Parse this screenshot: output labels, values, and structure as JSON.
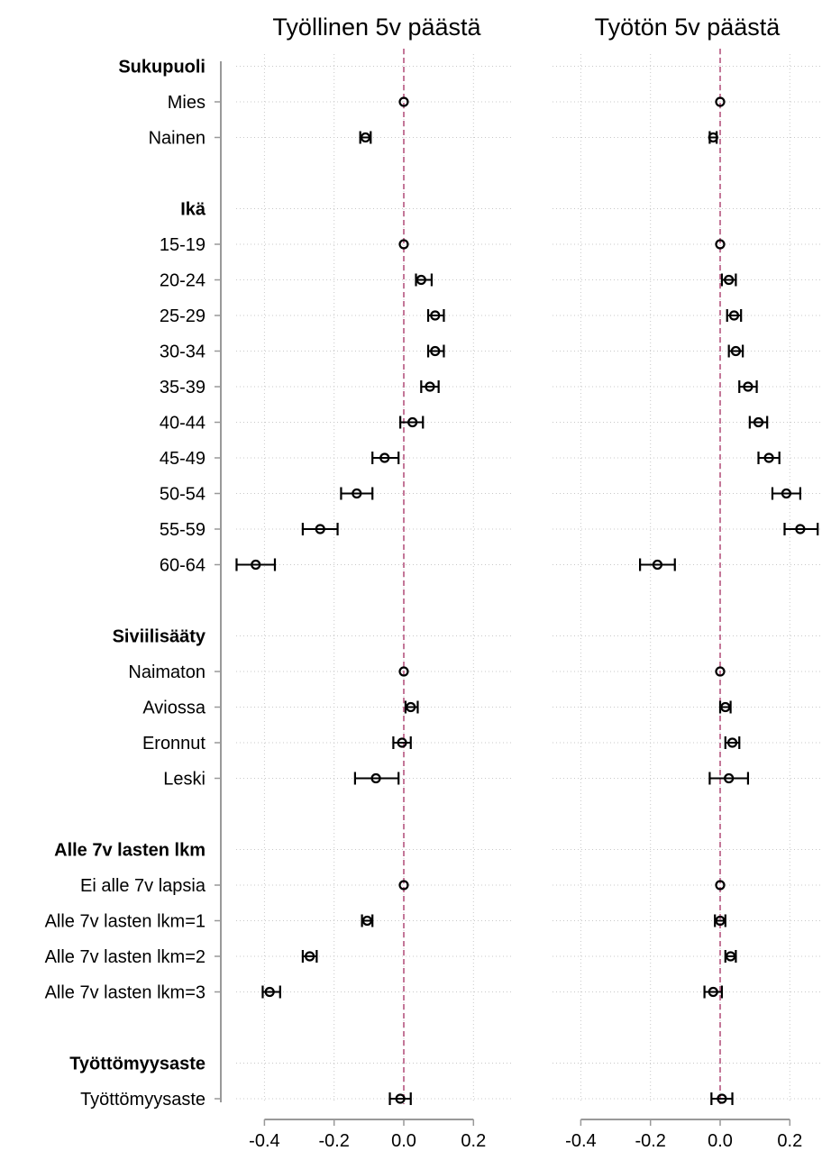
{
  "chart_data": {
    "type": "scatter",
    "categories": [
      {
        "label": "Sukupuoli",
        "header": true
      },
      {
        "label": "Mies"
      },
      {
        "label": "Nainen"
      },
      {
        "label": "",
        "spacer": true
      },
      {
        "label": "Ikä",
        "header": true
      },
      {
        "label": "15-19"
      },
      {
        "label": "20-24"
      },
      {
        "label": "25-29"
      },
      {
        "label": "30-34"
      },
      {
        "label": "35-39"
      },
      {
        "label": "40-44"
      },
      {
        "label": "45-49"
      },
      {
        "label": "50-54"
      },
      {
        "label": "55-59"
      },
      {
        "label": "60-64"
      },
      {
        "label": "",
        "spacer": true
      },
      {
        "label": "Siviilisääty",
        "header": true
      },
      {
        "label": "Naimaton"
      },
      {
        "label": "Aviossa"
      },
      {
        "label": "Eronnut"
      },
      {
        "label": "Leski"
      },
      {
        "label": "",
        "spacer": true
      },
      {
        "label": "Alle 7v lasten lkm",
        "header": true
      },
      {
        "label": "Ei alle 7v lapsia"
      },
      {
        "label": "Alle 7v lasten lkm=1"
      },
      {
        "label": "Alle 7v lasten lkm=2"
      },
      {
        "label": "Alle 7v lasten lkm=3"
      },
      {
        "label": "",
        "spacer": true
      },
      {
        "label": "Työttömyysaste",
        "header": true
      },
      {
        "label": "Työttömyysaste"
      }
    ],
    "xticks": [
      -0.4,
      -0.2,
      0.0,
      0.2
    ],
    "xtick_labels": [
      "-0.4",
      "-0.2",
      "0.0",
      "0.2"
    ],
    "xlim": [
      -0.53,
      0.3
    ],
    "reference_line": 0,
    "reference_color": "#b5557f",
    "grid": true,
    "panels": [
      {
        "title": "Työllinen 5v päästä",
        "estimates": [
          null,
          0.0,
          -0.11,
          null,
          null,
          0.0,
          0.05,
          0.09,
          0.09,
          0.075,
          0.025,
          -0.055,
          -0.135,
          -0.24,
          -0.425,
          null,
          null,
          0.0,
          0.02,
          -0.005,
          -0.08,
          null,
          null,
          0.0,
          -0.105,
          -0.27,
          -0.385,
          null,
          null,
          -0.01
        ],
        "ci_lower": [
          null,
          null,
          -0.125,
          null,
          null,
          null,
          0.035,
          0.07,
          0.07,
          0.05,
          -0.01,
          -0.09,
          -0.18,
          -0.29,
          -0.48,
          null,
          null,
          null,
          0.005,
          -0.03,
          -0.14,
          null,
          null,
          null,
          -0.12,
          -0.29,
          -0.405,
          null,
          null,
          -0.04
        ],
        "ci_upper": [
          null,
          null,
          -0.095,
          null,
          null,
          null,
          0.08,
          0.115,
          0.115,
          0.1,
          0.055,
          -0.015,
          -0.09,
          -0.19,
          -0.37,
          null,
          null,
          null,
          0.04,
          0.02,
          -0.015,
          null,
          null,
          null,
          -0.09,
          -0.25,
          -0.355,
          null,
          null,
          0.02
        ]
      },
      {
        "title": "Työtön 5v päästä",
        "estimates": [
          null,
          0.0,
          -0.02,
          null,
          null,
          0.0,
          0.025,
          0.04,
          0.045,
          0.08,
          0.11,
          0.14,
          0.19,
          0.23,
          -0.18,
          null,
          null,
          0.0,
          0.015,
          0.035,
          0.025,
          null,
          null,
          0.0,
          0.0,
          0.03,
          -0.02,
          null,
          null,
          0.005
        ],
        "ci_lower": [
          null,
          null,
          -0.03,
          null,
          null,
          null,
          0.005,
          0.02,
          0.025,
          0.055,
          0.085,
          0.11,
          0.15,
          0.185,
          -0.23,
          null,
          null,
          null,
          0.0,
          0.015,
          -0.03,
          null,
          null,
          null,
          -0.015,
          0.015,
          -0.045,
          null,
          null,
          -0.025
        ],
        "ci_upper": [
          null,
          null,
          -0.01,
          null,
          null,
          null,
          0.045,
          0.06,
          0.065,
          0.105,
          0.135,
          0.17,
          0.23,
          0.28,
          -0.13,
          null,
          null,
          null,
          0.03,
          0.055,
          0.08,
          null,
          null,
          null,
          0.015,
          0.045,
          0.005,
          null,
          null,
          0.035
        ]
      }
    ]
  }
}
